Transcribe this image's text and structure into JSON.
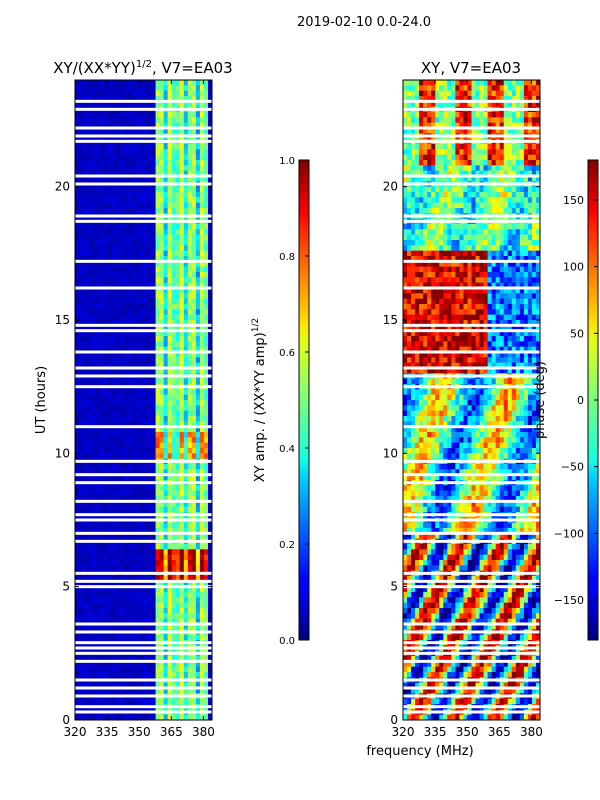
{
  "figure_title": "2019-02-10 0.0-24.0",
  "colors": {
    "low": "#00008f",
    "mid_blue": "#0060ff",
    "cyan": "#00e0ff",
    "green": "#80ff80",
    "yellow": "#ffe000",
    "orange": "#ff8000",
    "red": "#e00000",
    "dark_red": "#800000"
  },
  "chart_data": [
    {
      "type": "heatmap",
      "title_main": "XY/(XX*YY)",
      "title_sup": "1/2",
      "title_rest": ", V7=EA03",
      "xlabel": "",
      "ylabel": "UT (hours)",
      "xlim": [
        320,
        384
      ],
      "ylim": [
        0,
        24
      ],
      "x_ticks": [
        320,
        335,
        350,
        365,
        380
      ],
      "y_ticks": [
        0,
        5,
        10,
        15,
        20
      ],
      "colorbar": {
        "label_main": "XY amp. / (XX*YY amp)",
        "label_sup": "1/2",
        "range": [
          0.0,
          1.0
        ],
        "ticks": [
          "0.0",
          "0.2",
          "0.4",
          "0.6",
          "0.8",
          "1.0"
        ],
        "tick_values": [
          0.0,
          0.2,
          0.4,
          0.6,
          0.8,
          1.0
        ]
      },
      "gap_rows_hours": [
        0.3,
        0.5,
        0.9,
        1.2,
        1.5,
        2.2,
        2.5,
        2.7,
        2.9,
        3.3,
        3.6,
        5.0,
        5.2,
        5.5,
        6.7,
        7.0,
        7.5,
        7.7,
        8.2,
        8.9,
        9.2,
        9.7,
        11.0,
        12.5,
        12.9,
        13.2,
        13.8,
        14.6,
        14.8,
        16.2,
        17.2,
        18.7,
        18.9,
        20.1,
        20.4,
        21.7,
        21.9,
        22.2,
        22.9,
        23.2
      ]
    },
    {
      "type": "heatmap",
      "title": "XY, V7=EA03",
      "xlabel": "frequency (MHz)",
      "ylabel": "",
      "xlim": [
        320,
        384
      ],
      "ylim": [
        0,
        24
      ],
      "x_ticks": [
        320,
        335,
        350,
        365,
        380
      ],
      "y_ticks": [
        0,
        5,
        10,
        15,
        20
      ],
      "colorbar": {
        "label": "phase (deg)",
        "range": [
          -180,
          180
        ],
        "ticks": [
          "150",
          "100",
          "50",
          "0",
          "−50",
          "−100",
          "−150"
        ],
        "tick_values": [
          150,
          100,
          50,
          0,
          -50,
          -100,
          -150
        ]
      },
      "gap_rows_hours": [
        0.3,
        0.5,
        0.9,
        1.2,
        1.5,
        2.2,
        2.5,
        2.7,
        2.9,
        3.3,
        3.6,
        5.0,
        5.2,
        5.5,
        6.7,
        7.0,
        7.5,
        7.7,
        8.2,
        8.9,
        9.2,
        9.7,
        11.0,
        12.5,
        12.9,
        13.2,
        13.8,
        14.6,
        14.8,
        16.2,
        17.2,
        18.7,
        18.9,
        20.1,
        20.4,
        21.7,
        21.9,
        22.2,
        22.9,
        23.2
      ]
    }
  ]
}
